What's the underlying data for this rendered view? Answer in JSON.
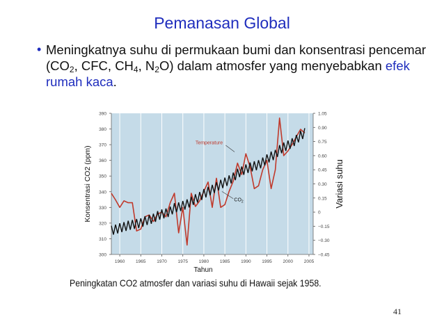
{
  "slide": {
    "title": "Pemanasan Global",
    "bullet": {
      "text_1": "Meningkatnya suhu di permukaan bumi dan konsentrasi pencemar (CO",
      "sub_1": "2",
      "text_2": ", CFC, CH",
      "sub_2": "4",
      "text_3": ", N",
      "sub_3": "2",
      "text_4": "O) dalam atmosfer yang menyebabkan ",
      "highlight": "efek rumah kaca",
      "text_5": "."
    },
    "caption": "Peningkatan CO2 atmosfer dan variasi suhu di Hawaii sejak 1958.",
    "page_number": "41"
  },
  "colors": {
    "title": "#1f2dbd",
    "plot_background": "#c5dbe8",
    "temperature_line": "#c0392b",
    "co2_line": "#111111"
  },
  "chart_data": {
    "type": "line",
    "xlabel": "Tahun",
    "ylabel_left": "Konsentrasi CO2 (ppm)",
    "ylabel_right": "Variasi suhu",
    "x_range": [
      1958,
      2006
    ],
    "y_left_range": [
      300,
      390
    ],
    "y_right_range": [
      -0.45,
      1.05
    ],
    "x_ticks": [
      "1960",
      "1965",
      "1970",
      "1975",
      "1980",
      "1985",
      "1990",
      "1995",
      "2000",
      "2005"
    ],
    "y_left_ticks": [
      "300",
      "310",
      "320",
      "330",
      "340",
      "350",
      "360",
      "370",
      "380",
      "390"
    ],
    "y_right_ticks": [
      "−0.45",
      "−0.30",
      "−0.15",
      "0",
      "0.15",
      "0.30",
      "0.45",
      "0.60",
      "0.75",
      "0.90",
      "1.05"
    ],
    "grid": "vertical",
    "series": [
      {
        "name": "Temperature",
        "axis": "right",
        "points": [
          [
            1958,
            0.2
          ],
          [
            1959,
            0.13
          ],
          [
            1960,
            0.05
          ],
          [
            1961,
            0.12
          ],
          [
            1962,
            0.1
          ],
          [
            1963,
            0.1
          ],
          [
            1964,
            -0.2
          ],
          [
            1965,
            -0.18
          ],
          [
            1966,
            -0.05
          ],
          [
            1967,
            -0.03
          ],
          [
            1968,
            -0.1
          ],
          [
            1969,
            -0.02
          ],
          [
            1970,
            0.0
          ],
          [
            1971,
            -0.05
          ],
          [
            1972,
            0.1
          ],
          [
            1973,
            0.2
          ],
          [
            1974,
            -0.22
          ],
          [
            1975,
            0.05
          ],
          [
            1976,
            -0.35
          ],
          [
            1977,
            0.2
          ],
          [
            1978,
            0.06
          ],
          [
            1979,
            0.12
          ],
          [
            1980,
            0.22
          ],
          [
            1981,
            0.32
          ],
          [
            1982,
            0.05
          ],
          [
            1983,
            0.36
          ],
          [
            1984,
            0.05
          ],
          [
            1985,
            0.08
          ],
          [
            1986,
            0.22
          ],
          [
            1987,
            0.33
          ],
          [
            1988,
            0.52
          ],
          [
            1989,
            0.4
          ],
          [
            1990,
            0.62
          ],
          [
            1991,
            0.48
          ],
          [
            1992,
            0.25
          ],
          [
            1993,
            0.28
          ],
          [
            1994,
            0.45
          ],
          [
            1995,
            0.55
          ],
          [
            1996,
            0.25
          ],
          [
            1997,
            0.45
          ],
          [
            1998,
            1.0
          ],
          [
            1999,
            0.6
          ],
          [
            2000,
            0.65
          ],
          [
            2001,
            0.72
          ],
          [
            2002,
            0.8
          ],
          [
            2003,
            0.88
          ],
          [
            2004,
            0.84
          ]
        ]
      },
      {
        "name": "CO",
        "name_sub": "2",
        "axis": "left",
        "points": [
          [
            1958,
            315.3
          ],
          [
            1959,
            316.0
          ],
          [
            1960,
            316.9
          ],
          [
            1961,
            317.6
          ],
          [
            1962,
            318.5
          ],
          [
            1963,
            319.0
          ],
          [
            1964,
            319.6
          ],
          [
            1965,
            320.0
          ],
          [
            1966,
            321.4
          ],
          [
            1967,
            322.2
          ],
          [
            1968,
            323.0
          ],
          [
            1969,
            324.6
          ],
          [
            1970,
            325.7
          ],
          [
            1971,
            326.3
          ],
          [
            1972,
            327.5
          ],
          [
            1973,
            329.7
          ],
          [
            1974,
            330.2
          ],
          [
            1975,
            331.1
          ],
          [
            1976,
            332.1
          ],
          [
            1977,
            333.8
          ],
          [
            1978,
            335.4
          ],
          [
            1979,
            336.8
          ],
          [
            1980,
            338.7
          ],
          [
            1981,
            340.1
          ],
          [
            1982,
            341.4
          ],
          [
            1983,
            343.0
          ],
          [
            1984,
            344.6
          ],
          [
            1985,
            346.0
          ],
          [
            1986,
            347.4
          ],
          [
            1987,
            349.2
          ],
          [
            1988,
            351.6
          ],
          [
            1989,
            353.1
          ],
          [
            1990,
            354.4
          ],
          [
            1991,
            355.6
          ],
          [
            1992,
            356.4
          ],
          [
            1993,
            357.1
          ],
          [
            1994,
            358.8
          ],
          [
            1995,
            360.8
          ],
          [
            1996,
            362.6
          ],
          [
            1997,
            363.7
          ],
          [
            1998,
            366.7
          ],
          [
            1999,
            368.4
          ],
          [
            2000,
            369.6
          ],
          [
            2001,
            371.1
          ],
          [
            2002,
            373.2
          ],
          [
            2003,
            375.8
          ],
          [
            2004,
            377.5
          ]
        ],
        "seasonal_amplitude": 3
      }
    ]
  }
}
